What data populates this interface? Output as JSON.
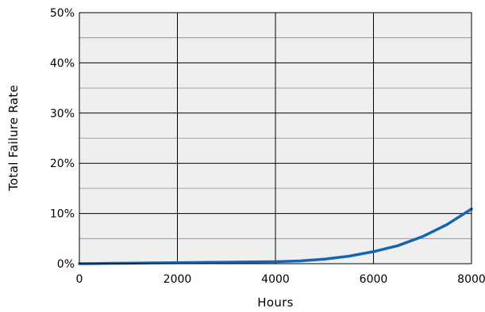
{
  "chart_data": {
    "type": "line",
    "title": "",
    "xlabel": "Hours",
    "ylabel": "Total Failure Rate",
    "xlim": [
      0,
      8000
    ],
    "ylim": [
      0,
      50
    ],
    "x_ticks": [
      "0",
      "2000",
      "4000",
      "6000",
      "8000"
    ],
    "x_tick_values": [
      0,
      2000,
      4000,
      6000,
      8000
    ],
    "y_ticks": [
      "0%",
      "10%",
      "20%",
      "30%",
      "40%",
      "50%"
    ],
    "y_tick_values": [
      0,
      10,
      20,
      30,
      40,
      50
    ],
    "y_minor_gridlines": [
      5,
      15,
      25,
      35,
      45
    ],
    "grid": true,
    "plot_background": "#efefef",
    "line_color": "#1565b3",
    "series": [
      {
        "x": [
          0,
          500,
          1000,
          1500,
          2000,
          2500,
          3000,
          3500,
          4000,
          4500,
          5000,
          5500,
          6000,
          6500,
          7000,
          7500,
          8000
        ],
        "y": [
          0.0,
          0.05,
          0.1,
          0.15,
          0.2,
          0.25,
          0.3,
          0.35,
          0.4,
          0.55,
          0.9,
          1.5,
          2.4,
          3.6,
          5.4,
          7.8,
          10.9
        ]
      }
    ]
  }
}
